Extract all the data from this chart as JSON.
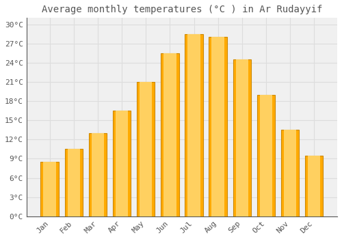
{
  "title": "Average monthly temperatures (°C ) in Ar Rudayyif",
  "months": [
    "Jan",
    "Feb",
    "Mar",
    "Apr",
    "May",
    "Jun",
    "Jul",
    "Aug",
    "Sep",
    "Oct",
    "Nov",
    "Dec"
  ],
  "values": [
    8.5,
    10.5,
    13.0,
    16.5,
    21.0,
    25.5,
    28.5,
    28.0,
    24.5,
    19.0,
    13.5,
    9.5
  ],
  "bar_color": "#FFAA00",
  "bar_edge_color": "#CC8800",
  "background_color": "#FFFFFF",
  "plot_bg_color": "#F0F0F0",
  "grid_color": "#DDDDDD",
  "text_color": "#555555",
  "ylim": [
    0,
    31
  ],
  "yticks": [
    0,
    3,
    6,
    9,
    12,
    15,
    18,
    21,
    24,
    27,
    30
  ],
  "title_fontsize": 10,
  "tick_fontsize": 8
}
